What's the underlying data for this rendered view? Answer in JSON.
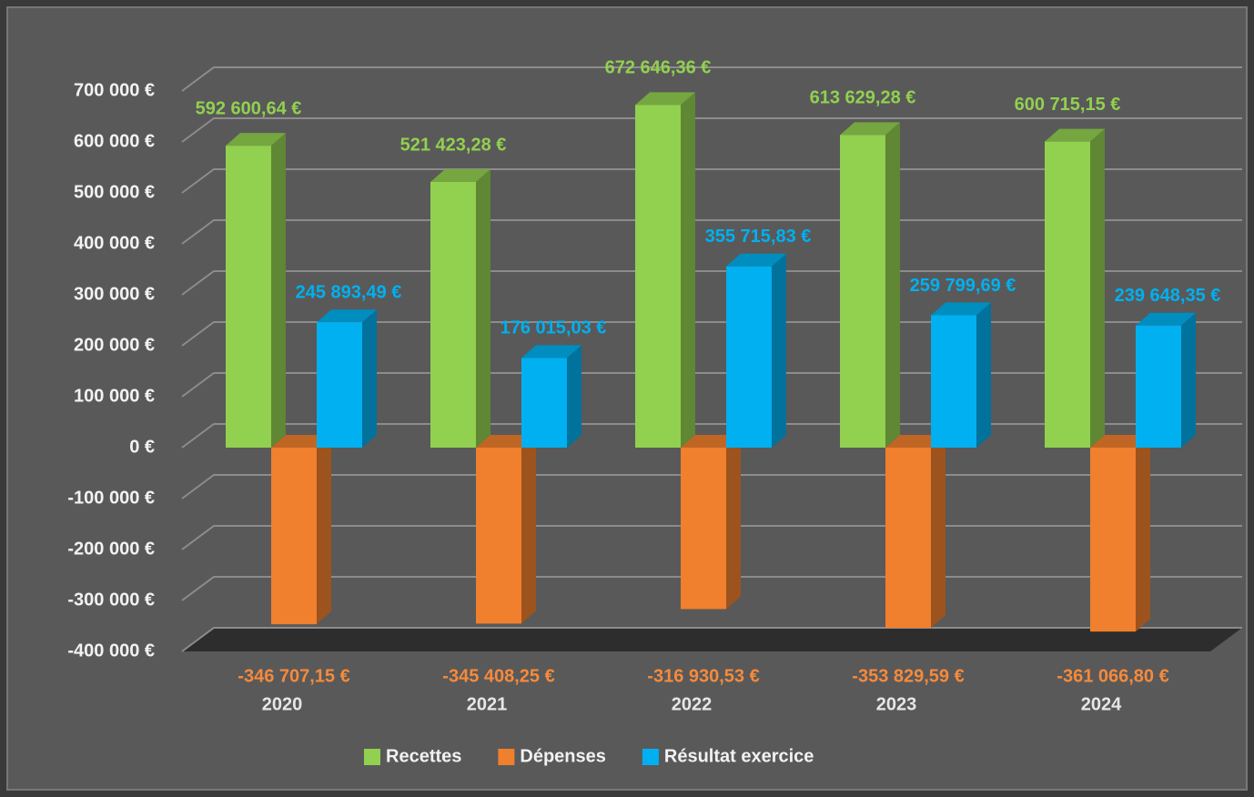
{
  "chart_data": {
    "type": "bar3d",
    "categories": [
      "2020",
      "2021",
      "2022",
      "2023",
      "2024"
    ],
    "series": [
      {
        "name": "Recettes",
        "color": "#92d050",
        "values": [
          592600.64,
          521423.28,
          672646.36,
          613629.28,
          600715.15
        ],
        "value_labels": [
          "592 600,64 €",
          "521 423,28 €",
          "672 646,36 €",
          "613 629,28 €",
          "600 715,15 €"
        ]
      },
      {
        "name": "Dépenses",
        "color": "#f07f2e",
        "values": [
          -346707.15,
          -345408.25,
          -316930.53,
          -353829.59,
          -361066.8
        ],
        "value_labels": [
          "-346 707,15 €",
          "-345 408,25 €",
          "-316 930,53 €",
          "-353 829,59 €",
          "-361 066,80 €"
        ]
      },
      {
        "name": "Résultat exercice",
        "color": "#00b0f0",
        "values": [
          245893.49,
          176015.03,
          355715.83,
          259799.69,
          239648.35
        ],
        "value_labels": [
          "245 893,49 €",
          "176 015,03 €",
          "355 715,83 €",
          "259 799,69 €",
          "239 648,35 €"
        ]
      }
    ],
    "ylim": [
      -400000,
      700000
    ],
    "yticks": [
      {
        "value": -400000,
        "label": "-400 000 €"
      },
      {
        "value": -300000,
        "label": "-300 000 €"
      },
      {
        "value": -200000,
        "label": "-200 000 €"
      },
      {
        "value": -100000,
        "label": "-100 000 €"
      },
      {
        "value": 0,
        "label": "0 €"
      },
      {
        "value": 100000,
        "label": "100 000 €"
      },
      {
        "value": 200000,
        "label": "200 000 €"
      },
      {
        "value": 300000,
        "label": "300 000 €"
      },
      {
        "value": 400000,
        "label": "400 000 €"
      },
      {
        "value": 500000,
        "label": "500 000 €"
      },
      {
        "value": 600000,
        "label": "600 000 €"
      },
      {
        "value": 700000,
        "label": "700 000 €"
      }
    ],
    "grid": true,
    "legend": "bottom"
  }
}
